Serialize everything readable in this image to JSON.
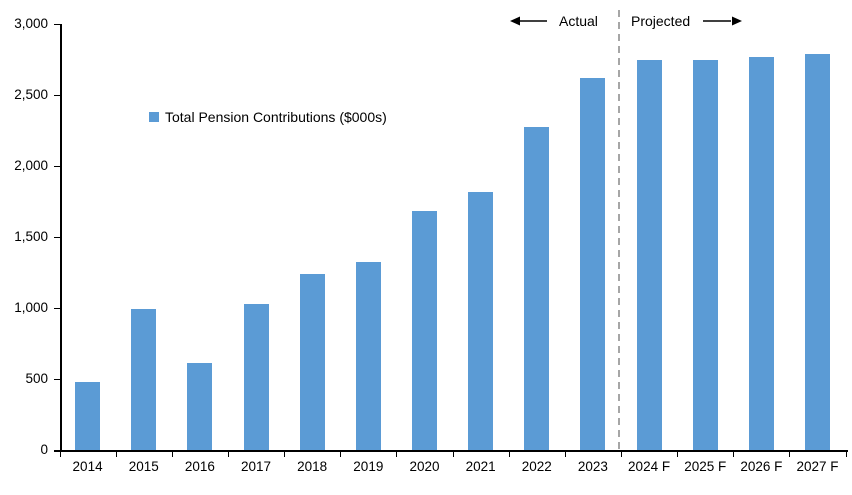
{
  "chart_data": {
    "type": "bar",
    "title": "",
    "legend": {
      "label": "Total Pension Contributions ($000s)"
    },
    "legend_position": "inside-upper-left",
    "categories": [
      "2014",
      "2015",
      "2016",
      "2017",
      "2018",
      "2019",
      "2020",
      "2021",
      "2022",
      "2023",
      "2024 F",
      "2025 F",
      "2026 F",
      "2027 F"
    ],
    "values": [
      480,
      990,
      615,
      1030,
      1240,
      1325,
      1685,
      1820,
      2275,
      2620,
      2750,
      2745,
      2765,
      2790
    ],
    "xlabel": "",
    "ylabel": "",
    "ylim": [
      0,
      3000
    ],
    "ytick_interval": 500,
    "ytick_labels": [
      "0",
      "500",
      "1,000",
      "1,500",
      "2,000",
      "2,500",
      "3,000"
    ],
    "grid": false,
    "bar_color": "#5B9BD5",
    "axis_color": "#000000",
    "separator_color": "#A6A6A6",
    "annotations": {
      "actual_label": "Actual",
      "projected_label": "Projected",
      "separator_before_category": "2024 F"
    }
  }
}
